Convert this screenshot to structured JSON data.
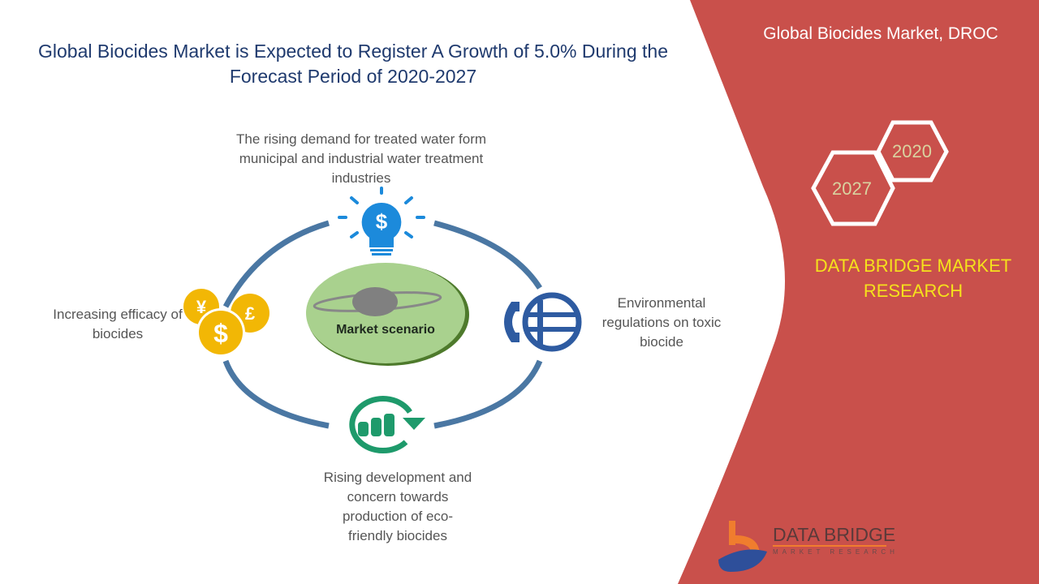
{
  "header": {
    "title": "Global Biocides Market is Expected to Register A Growth of 5.0% During the Forecast Period of 2020-2027",
    "panel_title": "Global Biocides Market, DROC"
  },
  "years": {
    "start": "2020",
    "end": "2027"
  },
  "brand": {
    "name": "DATA BRIDGE MARKET RESEARCH",
    "logo_title": "DATA BRIDGE",
    "logo_subtitle": "MARKET RESEARCH"
  },
  "center": {
    "label": "Market scenario"
  },
  "drivers": {
    "top": "The rising demand for treated water form municipal and industrial water treatment industries",
    "left": "Increasing efficacy of biocides",
    "right": "Environmental regulations on toxic biocide",
    "bottom": "Rising development and concern towards production of eco-friendly biocides"
  },
  "colors": {
    "panel": "#C9504B",
    "ring": "#4A77A3",
    "accent_yellow": "#F5E11C",
    "title": "#1F3A6E"
  }
}
